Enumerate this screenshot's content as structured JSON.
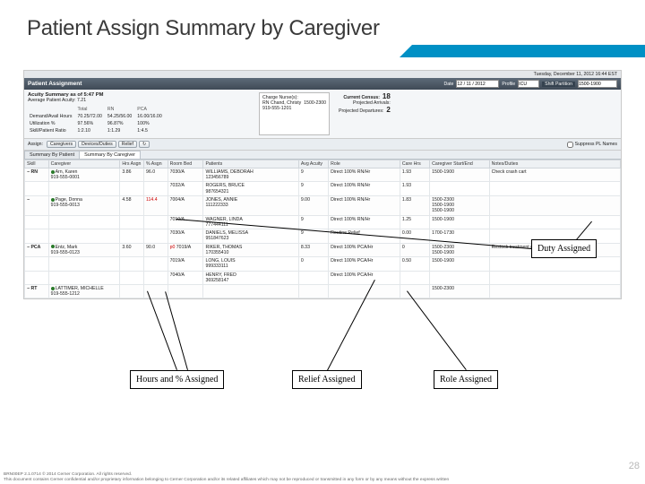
{
  "slide": {
    "title": "Patient Assign Summary by Caregiver",
    "page_number": "28",
    "footer1": "BRN00EP 2.1.0714   © 2014 Cerner Corporation. All rights reserved.",
    "footer2": "This document contains Cerner confidential and/or proprietary information belonging to Cerner Corporation and/or its related affiliates which may not be reproduced or transmitted in any form or by any means without the express written"
  },
  "app": {
    "datetime_line": "Tuesday, December 11, 2012 16:44 EST",
    "panel_title": "Patient Assignment",
    "date_label": "Date",
    "date_value": "12 / 11 / 2012",
    "profile_label": "Profile",
    "profile_value": "ICU",
    "shift_label": "Shift Partition",
    "shift_value": "1500-1900"
  },
  "acuity": {
    "heading": "Acuity Summary as of 5:47 PM",
    "subheading": "Average Patient Acuity: 7.21",
    "col_total": "Total",
    "col_rn": "RN",
    "col_pca": "PCA",
    "demand_label": "Demand/Avail Hours",
    "demand_total": "70.25/72.00",
    "demand_rn": "54.25/56.00",
    "demand_pca": "16.00/16.00",
    "util_label": "Utilization %",
    "util_total": "97.56%",
    "util_rn": "96.87%",
    "util_pca": "100%",
    "ratio_label": "Skill/Patient Ratio",
    "ratio_total": "1:2.10",
    "ratio_rn": "1:1.29",
    "ratio_pca": "1:4.5"
  },
  "cn": {
    "label": "Charge Nurse(s):",
    "name": "RN   Chand, Christy",
    "phone": "919-555-1201",
    "shift": "1500-2300"
  },
  "census": {
    "label": "Current Census:",
    "value": "18",
    "arr_label": "Projected Arrivals:",
    "dep_label": "Projected Departures:",
    "dep_value": "2"
  },
  "btn": {
    "assign_label": "Assign:",
    "caregivers": "Caregivers",
    "devices": "Devices/Duties",
    "relief": "Relief",
    "suppress": "Suppress PL Names"
  },
  "tabs": {
    "by_patient": "Summary By Patient",
    "by_caregiver": "Summary By Caregiver"
  },
  "cols": {
    "skill": "Skill",
    "caregiver": "Caregiver",
    "hrs": "Hrs Asgn",
    "pct": "% Asgn",
    "room": "Room Bed",
    "patients": "Patients",
    "avg": "Avg Acuity",
    "role": "Role",
    "care": "Care Hrs",
    "cgse": "Caregiver Start/End",
    "notes": "Notes/Duties"
  },
  "rows": [
    {
      "skill": "RN",
      "cg": "Arn, Karen",
      "ph": "919-555-0001",
      "hrs": "3.86",
      "pct": "96.0",
      "room": "7030/A",
      "pat": "WILLIAMS, DEBORAH\n123456789",
      "avg": "9",
      "role": "Direct 100% RN/Hr",
      "care": "1.93",
      "cgse": "1500-1900",
      "notes": "Check crash cart"
    },
    {
      "room": "7032/A",
      "pat": "ROGERS, BRUCE\n987654321",
      "avg": "9",
      "role": "Direct 100% RN/Hr",
      "care": "1.93"
    },
    {
      "skill": "",
      "cg": "Page, Donna",
      "ph": "919-555-0013",
      "hrs": "4.58",
      "pct": "114.4",
      "pctred": true,
      "room": "7004/A",
      "pat": "JONES, ANNIE\n111222333",
      "avg": "9.00",
      "role": "Direct 100% RN/Hr",
      "care": "1.83",
      "cgse": "1500-2300\n1500-1900\n1500-1900"
    },
    {
      "room": "7010/A",
      "pat": "WAGNER, LINDA\n777444111",
      "avg": "9",
      "role": "Direct 100% RN/Hr",
      "care": "1.25",
      "cgse": "1500-1900"
    },
    {
      "room": "7030/A",
      "pat": "DANIELS, MELISSA\n951847623",
      "avg": "9",
      "role": "Routine Relief",
      "care": "0.00",
      "cgse": "1700-1730"
    },
    {
      "skill": "PCA",
      "cg": "Entz, Mark",
      "ph": "919-555-0123",
      "hrs": "3.60",
      "pct": "90.0",
      "room": "7019/A",
      "pfx": "p0",
      "pat": "RIKER, THOMAS\n170355410",
      "avg": "8.33",
      "role": "Direct 100% PCA/Hr",
      "care": "0",
      "cgse": "1500-2300\n1500-1900",
      "notes": "Restock treatment r…"
    },
    {
      "room": "7019/A",
      "pat": "LONG, LOUIS\n999333111",
      "avg": "0",
      "role": "Direct 100% PCA/Hr",
      "care": "0.50",
      "cgse": "1500-1900"
    },
    {
      "room": "7040/A",
      "pat": "HENRY, FRED\n369258147",
      "avg": "",
      "role": "Direct 100% PCA/Hr",
      "care": "",
      "cgse": ""
    },
    {
      "skill": "RT",
      "cg": "LATTIMER, MICHELLE",
      "ph": "919-555-1212",
      "hrs": "",
      "pct": "",
      "room": "",
      "pat": "",
      "avg": "",
      "role": "",
      "care": "",
      "cgse": "1500-2300"
    }
  ],
  "callouts": {
    "hours": "Hours and % Assigned",
    "relief": "Relief Assigned",
    "role": "Role Assigned",
    "duty": "Duty Assigned"
  }
}
